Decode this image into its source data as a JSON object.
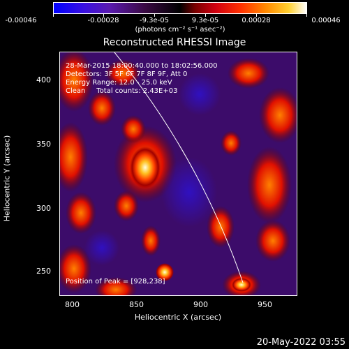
{
  "colorbar": {
    "ticks": [
      "-0.00046",
      "-0.00028",
      "-9.3e-05",
      "9.3e-05",
      "0.00028",
      "0.00046"
    ],
    "unit": "(photons cm⁻² s⁻¹ asec⁻²)",
    "colors": [
      "#0000ff",
      "#5000c8",
      "#2c0a2c",
      "#ff2000",
      "#ff9a00",
      "#ffffff"
    ]
  },
  "title": "Reconstructed RHESSI Image",
  "annotations": {
    "line1": "28-Mar-2015 18:00:40.000 to 18:02:56.000",
    "line2": "Detectors: 3F 5F 6F 7F 8F 9F, Att 0",
    "line3": "Energy Range: 12.0 - 25.0 keV",
    "line4": "Clean     Total counts: 2.43E+03",
    "peak": "Position of Peak = [928,238]"
  },
  "axes": {
    "xlabel": "Heliocentric X (arcsec)",
    "ylabel": "Heliocentric Y (arcsec)",
    "xticks": [
      "800",
      "850",
      "900",
      "950"
    ],
    "yticks": [
      "400",
      "350",
      "300",
      "250"
    ],
    "xlim": [
      783,
      977
    ],
    "ylim": [
      230,
      425
    ]
  },
  "timestamp": "20-May-2022 03:55"
}
